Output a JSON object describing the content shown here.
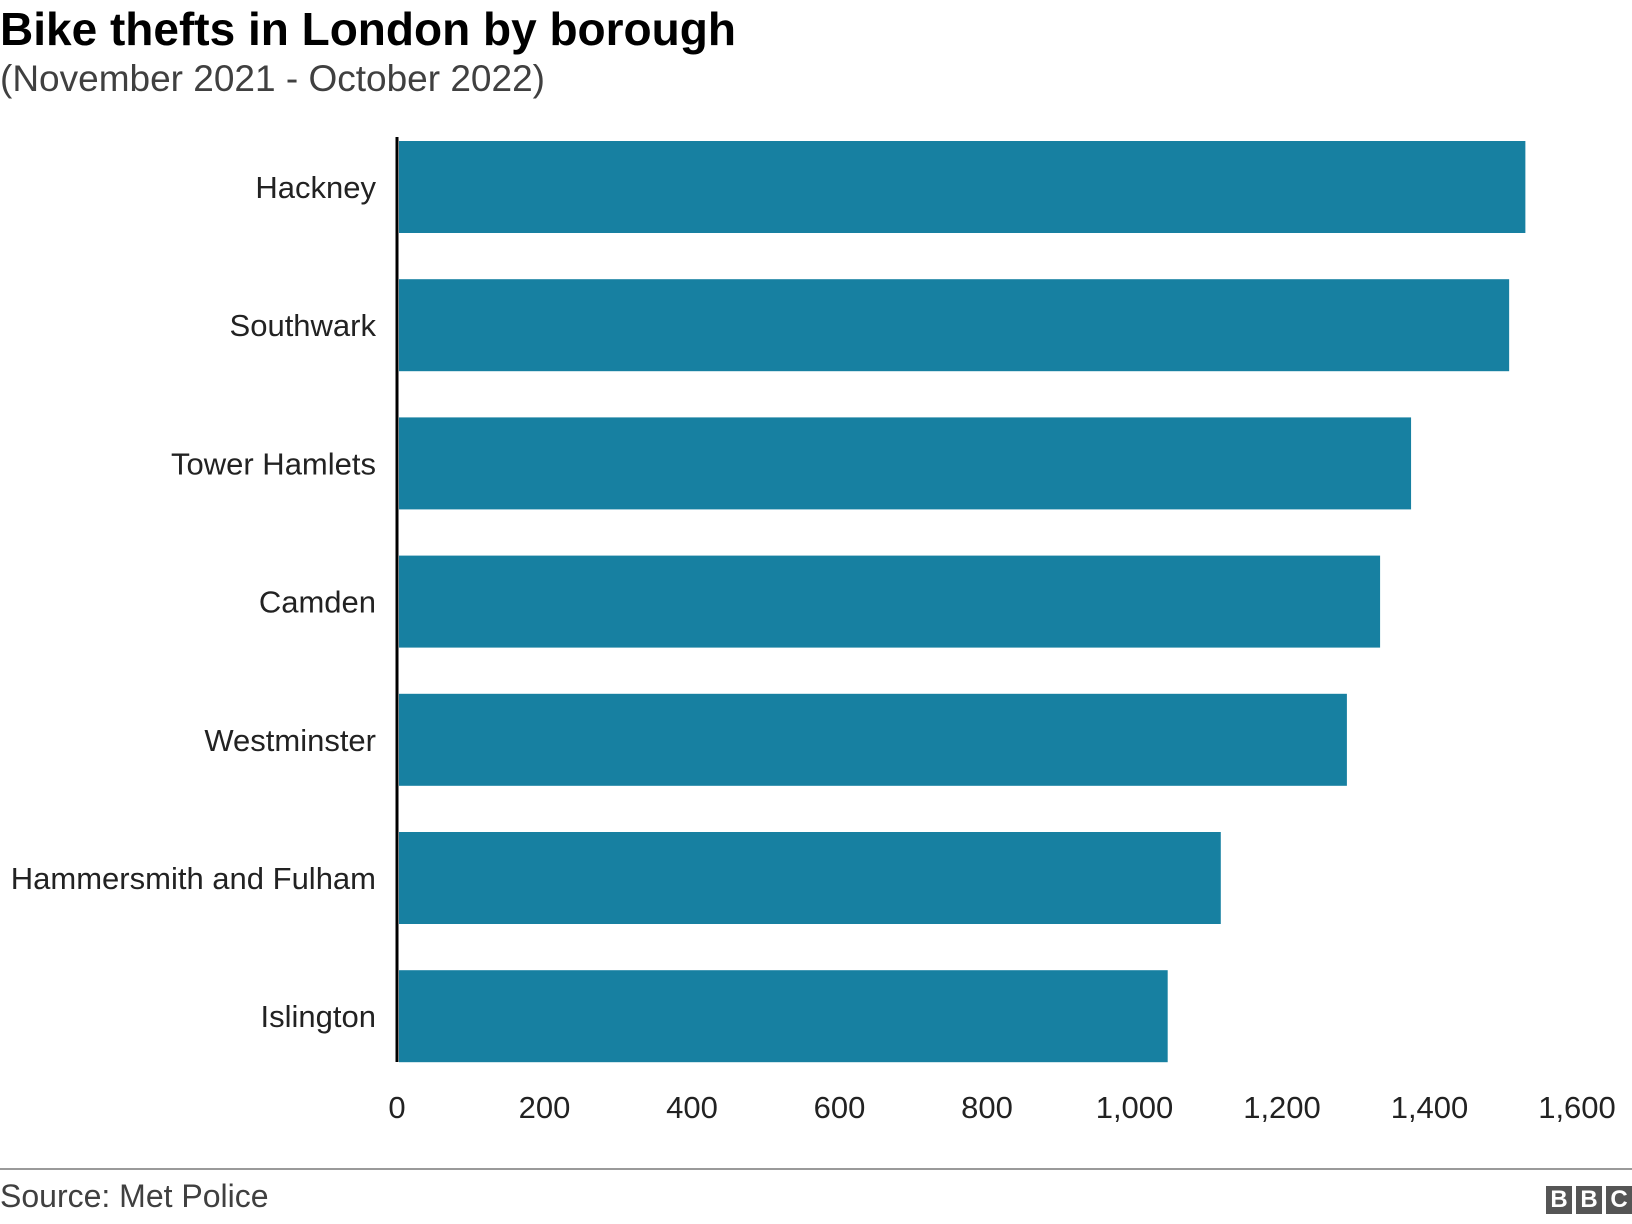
{
  "chart_data": {
    "type": "bar",
    "orientation": "horizontal",
    "title": "Bike thefts in London by borough",
    "subtitle": "(November 2021 - October 2022)",
    "categories": [
      "Hackney",
      "Southwark",
      "Tower Hamlets",
      "Camden",
      "Westminster",
      "Hammersmith and Fulham",
      "Islington"
    ],
    "values": [
      1530,
      1508,
      1375,
      1333,
      1288,
      1117,
      1045
    ],
    "xlim": [
      0,
      1600
    ],
    "xticks": [
      0,
      200,
      400,
      600,
      800,
      1000,
      1200,
      1400,
      1600
    ],
    "xtick_labels": [
      "0",
      "200",
      "400",
      "600",
      "800",
      "1,000",
      "1,200",
      "1,400",
      "1,600"
    ],
    "grid": false,
    "bar_color": "#1780a1"
  },
  "footer": {
    "source": "Source: Met Police",
    "logo_letters": [
      "B",
      "B",
      "C"
    ]
  }
}
